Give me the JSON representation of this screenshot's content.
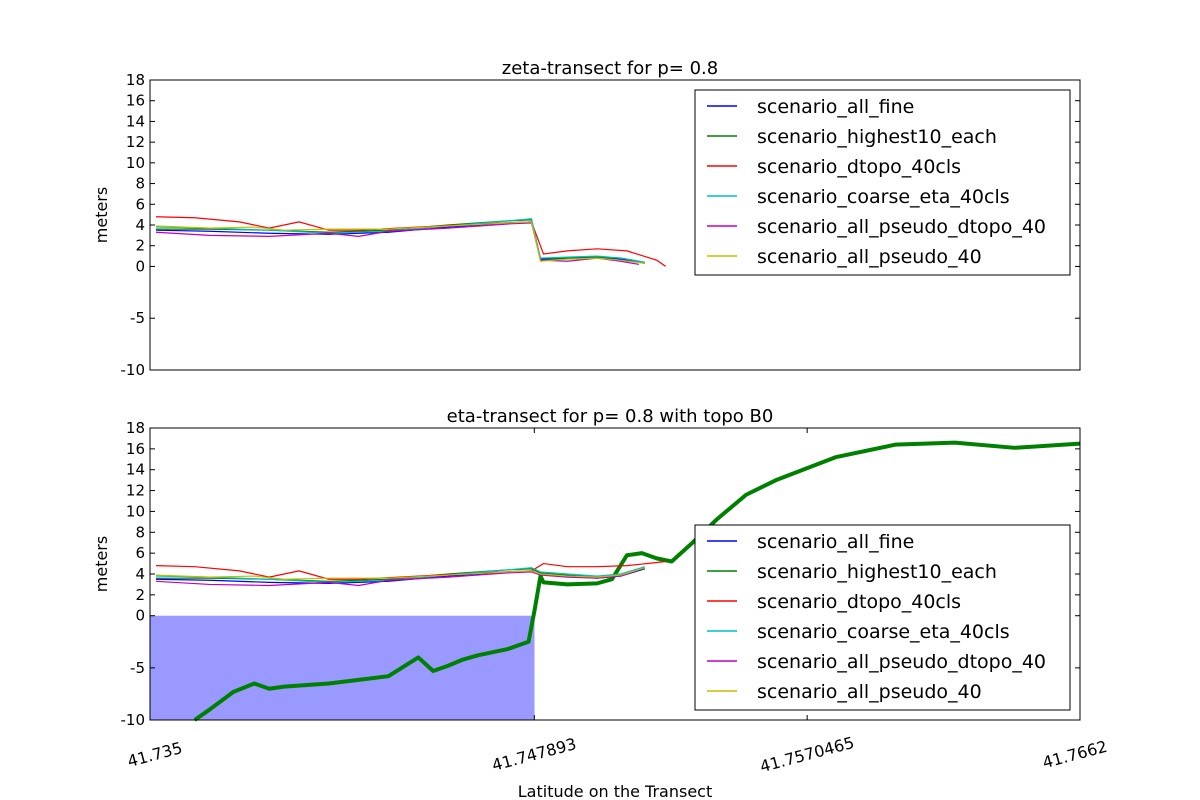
{
  "figure": {
    "xlabel": "Latitude on the Transect"
  },
  "chart_data": [
    {
      "type": "line",
      "title": "zeta-transect for p= 0.8",
      "ylabel": "meters",
      "ylim": [
        -10,
        18
      ],
      "yticks": [
        -10,
        -5,
        0,
        2,
        4,
        6,
        8,
        10,
        12,
        14,
        16,
        18
      ],
      "xlim": [
        41.735,
        41.7662
      ],
      "xticks": [],
      "legend_location": "upper-right",
      "series": [
        {
          "name": "scenario_all_fine",
          "color": "#0000ff",
          "x": [
            41.7352,
            41.737,
            41.739,
            41.741,
            41.743,
            41.745,
            41.747,
            41.7478,
            41.7481,
            41.749,
            41.75,
            41.7508,
            41.7516
          ],
          "y": [
            3.5,
            3.4,
            3.2,
            3.1,
            3.3,
            3.8,
            4.2,
            4.3,
            0.7,
            0.8,
            0.9,
            0.7,
            0.3
          ]
        },
        {
          "name": "scenario_highest10_each",
          "color": "#008000",
          "x": [
            41.7352,
            41.737,
            41.739,
            41.741,
            41.743,
            41.745,
            41.747,
            41.7478,
            41.7481,
            41.749,
            41.75,
            41.7508,
            41.7516
          ],
          "y": [
            3.6,
            3.6,
            3.5,
            3.3,
            3.5,
            4.0,
            4.4,
            4.5,
            0.6,
            0.8,
            0.9,
            0.8,
            0.4
          ]
        },
        {
          "name": "scenario_dtopo_40cls",
          "color": "#ff0000",
          "x": [
            41.7352,
            41.7365,
            41.738,
            41.739,
            41.74,
            41.741,
            41.742,
            41.744,
            41.746,
            41.7478,
            41.7482,
            41.749,
            41.75,
            41.751,
            41.752,
            41.7523
          ],
          "y": [
            4.8,
            4.7,
            4.3,
            3.7,
            4.3,
            3.5,
            3.5,
            3.8,
            4.1,
            4.3,
            1.2,
            1.5,
            1.7,
            1.5,
            0.6,
            0.0
          ]
        },
        {
          "name": "scenario_coarse_eta_40cls",
          "color": "#00bfbf",
          "x": [
            41.7352,
            41.737,
            41.739,
            41.741,
            41.743,
            41.745,
            41.747,
            41.7478,
            41.7481,
            41.749,
            41.75,
            41.7508,
            41.7516
          ],
          "y": [
            3.8,
            3.7,
            3.5,
            3.2,
            3.4,
            3.9,
            4.4,
            4.6,
            0.8,
            0.9,
            1.0,
            0.8,
            0.4
          ]
        },
        {
          "name": "scenario_all_pseudo_dtopo_40",
          "color": "#bf00bf",
          "x": [
            41.7352,
            41.737,
            41.739,
            41.741,
            41.742,
            41.743,
            41.745,
            41.747,
            41.7478,
            41.7481,
            41.749,
            41.75,
            41.7508,
            41.7514
          ],
          "y": [
            3.3,
            3.0,
            2.9,
            3.2,
            2.9,
            3.4,
            3.7,
            4.1,
            4.2,
            0.6,
            0.5,
            0.8,
            0.5,
            0.2
          ]
        },
        {
          "name": "scenario_all_pseudo_40",
          "color": "#bfbf00",
          "x": [
            41.7352,
            41.737,
            41.7385,
            41.7395,
            41.741,
            41.743,
            41.745,
            41.747,
            41.7478,
            41.7481,
            41.749,
            41.75,
            41.7508,
            41.7516
          ],
          "y": [
            3.9,
            3.7,
            3.8,
            3.5,
            3.6,
            3.6,
            3.9,
            4.2,
            4.3,
            0.5,
            0.7,
            0.8,
            0.6,
            0.3
          ]
        }
      ]
    },
    {
      "type": "line",
      "title": "eta-transect for p= 0.8 with topo B0",
      "ylabel": "meters",
      "ylim": [
        -10,
        18
      ],
      "yticks": [
        -10,
        -5,
        0,
        2,
        4,
        6,
        8,
        10,
        12,
        14,
        16,
        18
      ],
      "xlim": [
        41.735,
        41.7662
      ],
      "xticks": [
        "41.735",
        "41.747893",
        "41.7570465",
        "41.7662"
      ],
      "xtick_values": [
        41.735,
        41.747893,
        41.7570465,
        41.7662
      ],
      "legend_location": "lower-right",
      "fill_region": {
        "color": "#9999ff",
        "x_from": 41.735,
        "x_to": 41.7479,
        "y_top": 0
      },
      "topography": {
        "name": "topo B0",
        "color": "#008000",
        "x": [
          41.7365,
          41.737,
          41.7378,
          41.7385,
          41.739,
          41.7395,
          41.741,
          41.743,
          41.744,
          41.7445,
          41.745,
          41.7455,
          41.746,
          41.747,
          41.7477,
          41.7479,
          41.7481,
          41.7482,
          41.749,
          41.75,
          41.7505,
          41.751,
          41.7515,
          41.752,
          41.7525,
          41.7532,
          41.754,
          41.755,
          41.756,
          41.758,
          41.76,
          41.762,
          41.764,
          41.7662
        ],
        "y": [
          -10,
          -9,
          -7.3,
          -6.5,
          -7,
          -6.8,
          -6.5,
          -5.8,
          -4,
          -5.3,
          -4.8,
          -4.2,
          -3.8,
          -3.2,
          -2.5,
          0.5,
          3.8,
          3.2,
          3.0,
          3.1,
          3.5,
          5.8,
          6.0,
          5.5,
          5.2,
          7.0,
          9.2,
          11.6,
          13.0,
          15.2,
          16.4,
          16.6,
          16.1,
          16.5
        ]
      },
      "series": [
        {
          "name": "scenario_all_fine",
          "color": "#0000ff",
          "x": [
            41.7352,
            41.737,
            41.739,
            41.741,
            41.743,
            41.745,
            41.747,
            41.7478,
            41.7481,
            41.749,
            41.75,
            41.7508,
            41.7516
          ],
          "y": [
            3.5,
            3.4,
            3.2,
            3.1,
            3.3,
            3.8,
            4.2,
            4.3,
            4.0,
            3.8,
            3.6,
            3.8,
            4.5
          ]
        },
        {
          "name": "scenario_highest10_each",
          "color": "#008000",
          "x": [
            41.7352,
            41.737,
            41.739,
            41.741,
            41.743,
            41.745,
            41.747,
            41.7478,
            41.7481,
            41.749,
            41.75,
            41.7508,
            41.7516
          ],
          "y": [
            3.6,
            3.6,
            3.5,
            3.3,
            3.5,
            4.0,
            4.4,
            4.5,
            4.1,
            3.9,
            3.7,
            3.9,
            4.6
          ]
        },
        {
          "name": "scenario_dtopo_40cls",
          "color": "#ff0000",
          "x": [
            41.7352,
            41.7365,
            41.738,
            41.739,
            41.74,
            41.741,
            41.742,
            41.744,
            41.746,
            41.7478,
            41.7482,
            41.749,
            41.75,
            41.751,
            41.752,
            41.7523
          ],
          "y": [
            4.8,
            4.7,
            4.3,
            3.7,
            4.3,
            3.5,
            3.5,
            3.8,
            4.1,
            4.3,
            5.0,
            4.7,
            4.7,
            4.8,
            5.1,
            5.2
          ]
        },
        {
          "name": "scenario_coarse_eta_40cls",
          "color": "#00bfbf",
          "x": [
            41.7352,
            41.737,
            41.739,
            41.741,
            41.743,
            41.745,
            41.747,
            41.7478,
            41.7481,
            41.749,
            41.75,
            41.7508,
            41.7516
          ],
          "y": [
            3.8,
            3.7,
            3.5,
            3.2,
            3.4,
            3.9,
            4.4,
            4.6,
            4.2,
            4.0,
            3.8,
            4.0,
            4.7
          ]
        },
        {
          "name": "scenario_all_pseudo_dtopo_40",
          "color": "#bf00bf",
          "x": [
            41.7352,
            41.737,
            41.739,
            41.741,
            41.742,
            41.743,
            41.745,
            41.747,
            41.7478,
            41.7481,
            41.749,
            41.75,
            41.7508,
            41.7514
          ],
          "y": [
            3.3,
            3.0,
            2.9,
            3.2,
            2.9,
            3.4,
            3.7,
            4.1,
            4.2,
            3.9,
            3.7,
            3.6,
            3.8,
            4.4
          ]
        },
        {
          "name": "scenario_all_pseudo_40",
          "color": "#bfbf00",
          "x": [
            41.7352,
            41.737,
            41.7385,
            41.7395,
            41.741,
            41.743,
            41.745,
            41.747,
            41.7478,
            41.7481,
            41.749,
            41.75,
            41.7508,
            41.7516
          ],
          "y": [
            3.9,
            3.7,
            3.8,
            3.5,
            3.6,
            3.6,
            3.9,
            4.2,
            4.3,
            4.0,
            3.8,
            3.7,
            3.9,
            4.6
          ]
        }
      ]
    }
  ]
}
